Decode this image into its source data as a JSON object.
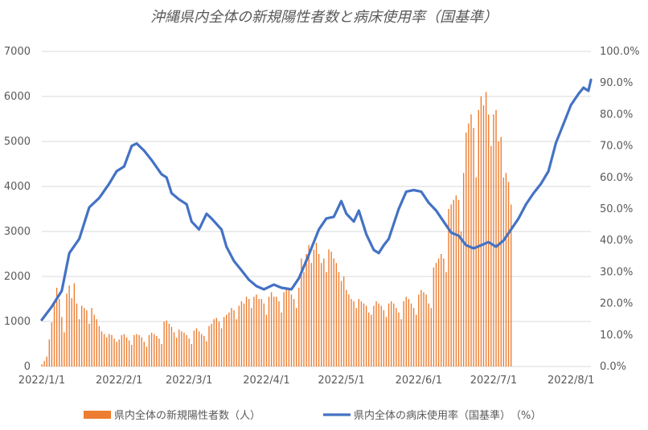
{
  "chart_data": {
    "type": "bar+line",
    "title": "沖縄県内全体の新規陽性者数と病床使用率（国基準）",
    "x_ticks": [
      "2022/1/1",
      "2022/2/1",
      "2022/3/1",
      "2022/4/1",
      "2022/5/1",
      "2022/6/1",
      "2022/7/1",
      "2022/8/1"
    ],
    "x_range": [
      "2022-01-01",
      "2022-08-09"
    ],
    "y_left": {
      "range": [
        0,
        7000
      ],
      "ticks": [
        "0",
        "1000",
        "2000",
        "3000",
        "4000",
        "5000",
        "6000",
        "7000"
      ]
    },
    "y_right": {
      "range": [
        0,
        100
      ],
      "ticks": [
        "0.0%",
        "10.0%",
        "20.0%",
        "30.0%",
        "40.0%",
        "50.0%",
        "60.0%",
        "70.0%",
        "80.0%",
        "90.0%",
        "100.0%"
      ]
    },
    "grid": true,
    "legend_position": "bottom",
    "series": [
      {
        "name": "県内全体の新規陽性者数（人）",
        "kind": "bar",
        "axis": "left",
        "color": "#ed7d31",
        "daily_counts_from_2022_01_01": [
          50,
          120,
          220,
          600,
          980,
          1400,
          1750,
          1500,
          1100,
          760,
          1620,
          1800,
          1520,
          1850,
          1400,
          1050,
          1350,
          1300,
          1250,
          950,
          1300,
          1150,
          1050,
          900,
          780,
          720,
          650,
          720,
          700,
          620,
          550,
          600,
          700,
          720,
          650,
          580,
          480,
          700,
          720,
          700,
          650,
          550,
          440,
          700,
          750,
          720,
          680,
          620,
          500,
          1000,
          1020,
          950,
          880,
          760,
          640,
          820,
          780,
          750,
          700,
          620,
          500,
          800,
          850,
          780,
          720,
          680,
          560,
          900,
          950,
          1050,
          1080,
          1000,
          850,
          1100,
          1150,
          1200,
          1300,
          1250,
          1050,
          1350,
          1450,
          1400,
          1550,
          1500,
          1300,
          1550,
          1600,
          1500,
          1500,
          1400,
          1150,
          1550,
          1650,
          1550,
          1550,
          1450,
          1200,
          1650,
          1750,
          1700,
          1600,
          1500,
          1300,
          1750,
          2400,
          2100,
          2500,
          2700,
          2300,
          2600,
          2750,
          2500,
          2300,
          2400,
          2100,
          2600,
          2550,
          2400,
          2300,
          2100,
          1900,
          2000,
          1700,
          1600,
          1500,
          1450,
          1300,
          1500,
          1450,
          1400,
          1350,
          1200,
          1150,
          1350,
          1450,
          1400,
          1350,
          1250,
          1100,
          1400,
          1450,
          1400,
          1300,
          1200,
          1050,
          1450,
          1550,
          1500,
          1400,
          1300,
          1150,
          1600,
          1700,
          1650,
          1600,
          1400,
          1300,
          2200,
          2300,
          2400,
          2500,
          2400,
          2100,
          3500,
          3600,
          3700,
          3800,
          3700,
          3000,
          4300,
          5200,
          5400,
          5600,
          5300,
          4200,
          5700,
          6000,
          5800,
          6100,
          5600,
          4900,
          5600,
          5700,
          5000,
          5100,
          4200,
          4300,
          4100,
          3600
        ]
      },
      {
        "name": "県内全体の病床使用率（国基準）　（%）",
        "kind": "line",
        "axis": "right",
        "color": "#4472c4",
        "points_date_pct": [
          [
            "2022-01-01",
            14.8
          ],
          [
            "2022-01-05",
            19.0
          ],
          [
            "2022-01-09",
            24.0
          ],
          [
            "2022-01-12",
            36.0
          ],
          [
            "2022-01-16",
            40.5
          ],
          [
            "2022-01-20",
            50.5
          ],
          [
            "2022-01-24",
            53.5
          ],
          [
            "2022-01-28",
            58.0
          ],
          [
            "2022-01-31",
            62.0
          ],
          [
            "2022-02-03",
            63.5
          ],
          [
            "2022-02-06",
            70.0
          ],
          [
            "2022-02-08",
            70.8
          ],
          [
            "2022-02-11",
            68.5
          ],
          [
            "2022-02-14",
            65.5
          ],
          [
            "2022-02-18",
            61.0
          ],
          [
            "2022-02-20",
            60.0
          ],
          [
            "2022-02-22",
            55.0
          ],
          [
            "2022-02-25",
            53.0
          ],
          [
            "2022-02-28",
            51.5
          ],
          [
            "2022-03-02",
            46.0
          ],
          [
            "2022-03-05",
            43.5
          ],
          [
            "2022-03-08",
            48.5
          ],
          [
            "2022-03-10",
            47.0
          ],
          [
            "2022-03-14",
            43.5
          ],
          [
            "2022-03-16",
            38.0
          ],
          [
            "2022-03-19",
            33.5
          ],
          [
            "2022-03-22",
            30.5
          ],
          [
            "2022-03-25",
            27.5
          ],
          [
            "2022-03-28",
            25.5
          ],
          [
            "2022-03-31",
            24.5
          ],
          [
            "2022-04-04",
            26.0
          ],
          [
            "2022-04-07",
            25.0
          ],
          [
            "2022-04-11",
            24.5
          ],
          [
            "2022-04-14",
            28.0
          ],
          [
            "2022-04-18",
            35.5
          ],
          [
            "2022-04-22",
            43.5
          ],
          [
            "2022-04-25",
            47.0
          ],
          [
            "2022-04-28",
            47.5
          ],
          [
            "2022-05-01",
            52.5
          ],
          [
            "2022-05-03",
            48.5
          ],
          [
            "2022-05-06",
            46.0
          ],
          [
            "2022-05-08",
            49.5
          ],
          [
            "2022-05-11",
            42.0
          ],
          [
            "2022-05-14",
            37.0
          ],
          [
            "2022-05-16",
            36.0
          ],
          [
            "2022-05-18",
            38.5
          ],
          [
            "2022-05-20",
            40.5
          ],
          [
            "2022-05-24",
            50.0
          ],
          [
            "2022-05-27",
            55.5
          ],
          [
            "2022-05-30",
            56.0
          ],
          [
            "2022-06-02",
            55.5
          ],
          [
            "2022-06-05",
            52.0
          ],
          [
            "2022-06-08",
            49.5
          ],
          [
            "2022-06-11",
            46.0
          ],
          [
            "2022-06-14",
            42.5
          ],
          [
            "2022-06-17",
            41.5
          ],
          [
            "2022-06-20",
            38.5
          ],
          [
            "2022-06-23",
            37.5
          ],
          [
            "2022-06-26",
            38.5
          ],
          [
            "2022-06-29",
            39.5
          ],
          [
            "2022-07-02",
            38.0
          ],
          [
            "2022-07-05",
            40.0
          ],
          [
            "2022-07-08",
            43.5
          ],
          [
            "2022-07-11",
            47.0
          ],
          [
            "2022-07-14",
            51.5
          ],
          [
            "2022-07-17",
            55.0
          ],
          [
            "2022-07-20",
            58.0
          ],
          [
            "2022-07-23",
            62.0
          ],
          [
            "2022-07-26",
            71.0
          ],
          [
            "2022-07-29",
            77.0
          ],
          [
            "2022-08-01",
            83.0
          ],
          [
            "2022-08-04",
            86.5
          ],
          [
            "2022-08-06",
            88.5
          ],
          [
            "2022-08-08",
            87.5
          ],
          [
            "2022-08-09",
            91.0
          ]
        ]
      }
    ]
  }
}
